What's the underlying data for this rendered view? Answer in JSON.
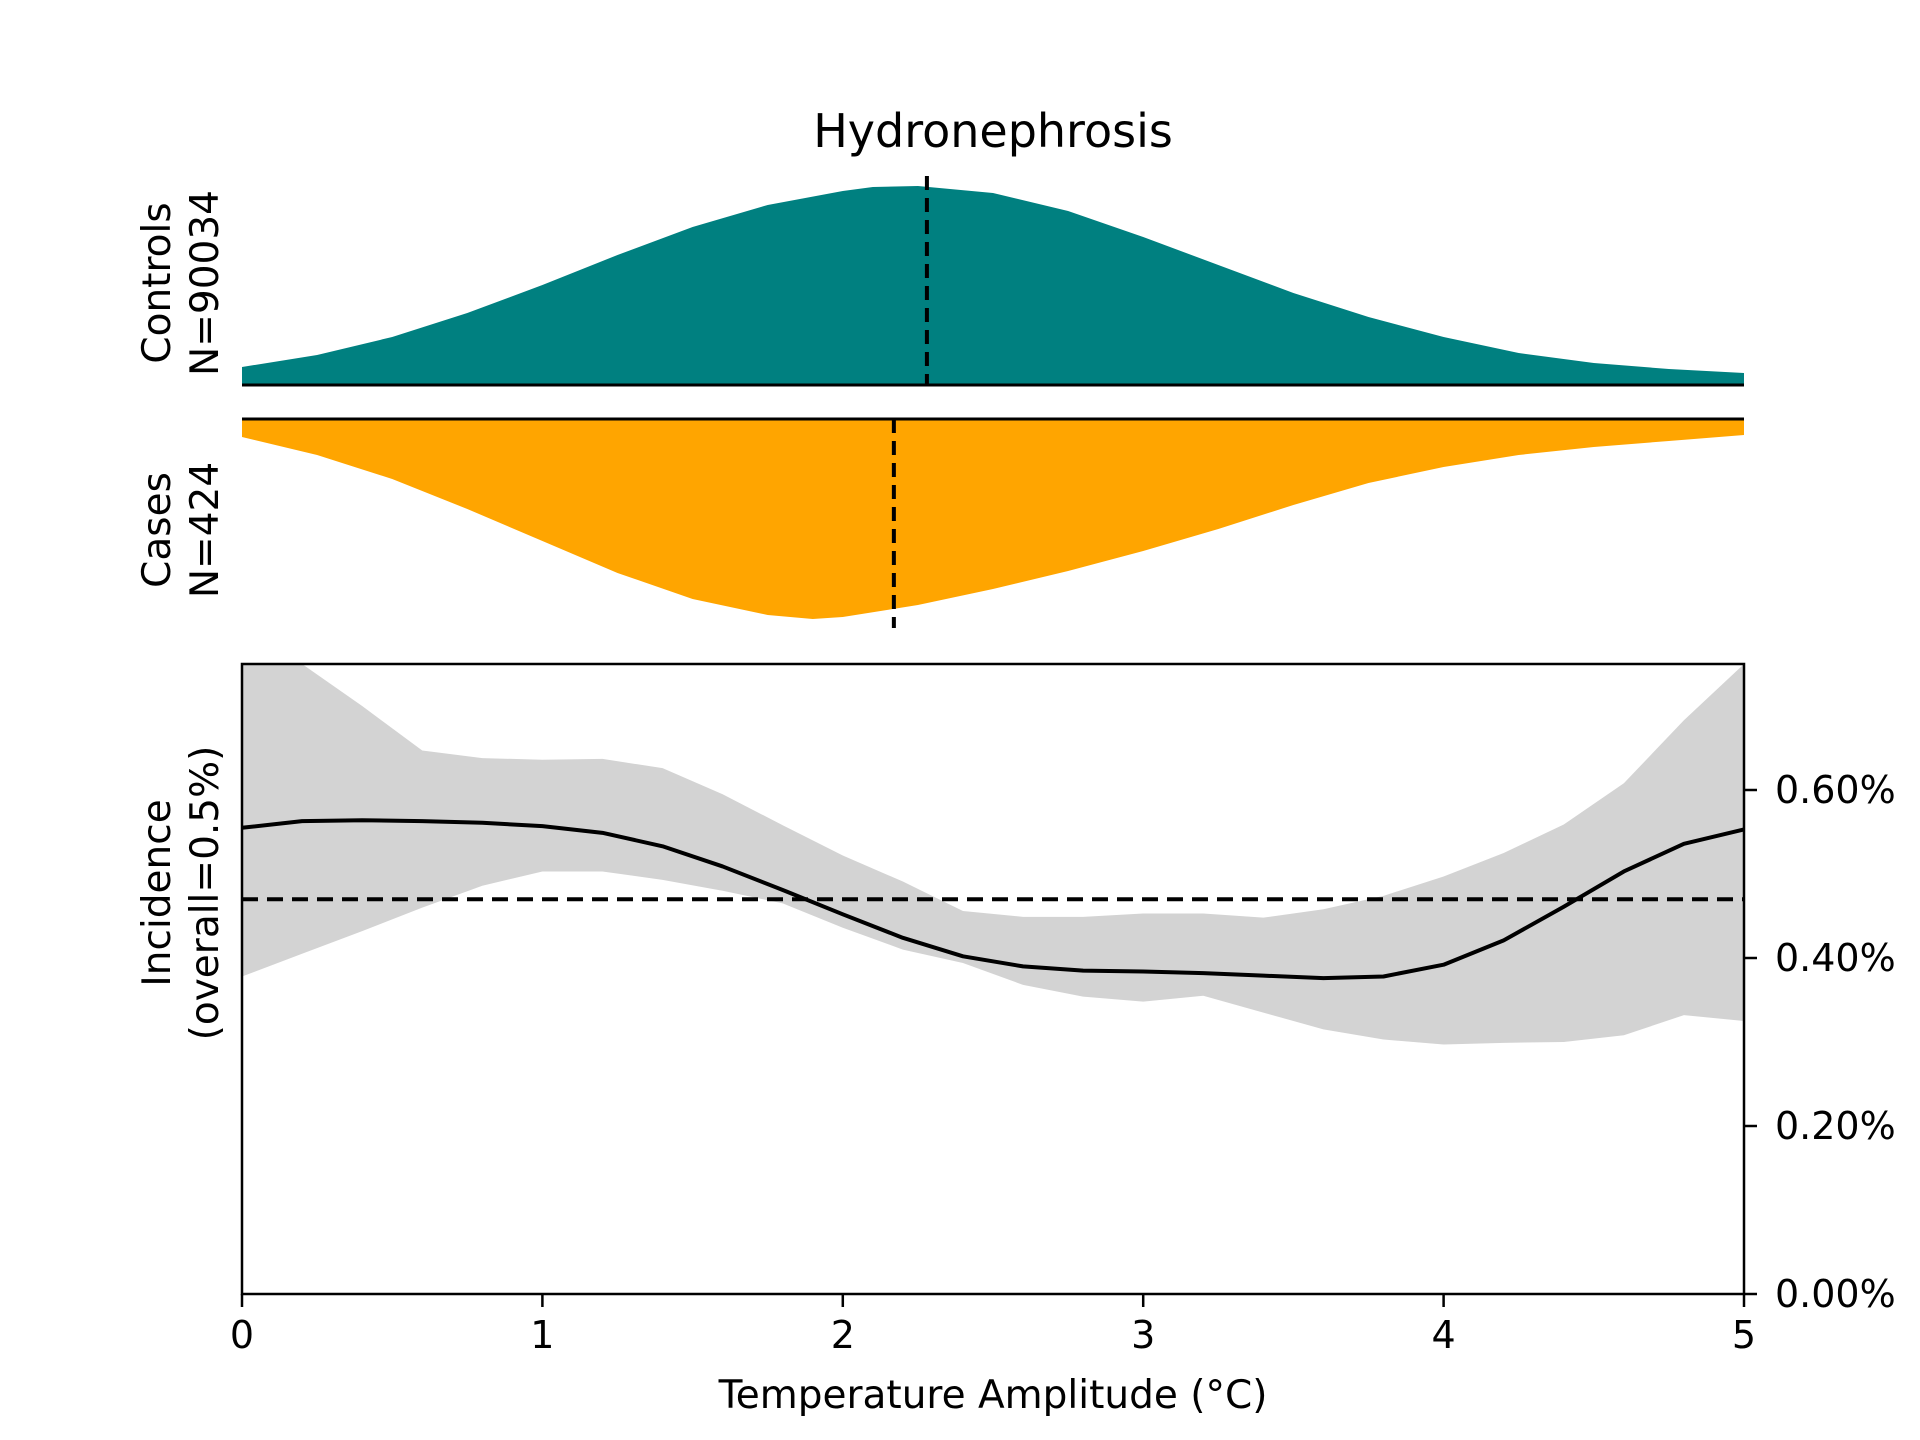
{
  "chart_data": {
    "type": "area",
    "title": "Hydronephrosis",
    "xlabel": "Temperature Amplitude (°C)",
    "xlim": [
      0,
      5
    ],
    "x_ticks": [
      0,
      1,
      2,
      3,
      4,
      5
    ],
    "x_tick_labels": [
      "0",
      "1",
      "2",
      "3",
      "4",
      "5"
    ],
    "colors": {
      "controls": "#008080",
      "cases": "#ffa500",
      "band": "#d3d3d3",
      "line": "#000000"
    },
    "controls": {
      "label_line1": "Controls",
      "label_line2": "N=90034",
      "median": 2.28,
      "density": {
        "x": [
          0,
          0.25,
          0.5,
          0.75,
          1,
          1.25,
          1.5,
          1.75,
          2,
          2.1,
          2.25,
          2.5,
          2.75,
          3,
          3.25,
          3.5,
          3.75,
          4,
          4.25,
          4.5,
          4.75,
          5
        ],
        "y": [
          0.09,
          0.15,
          0.24,
          0.36,
          0.5,
          0.65,
          0.79,
          0.9,
          0.97,
          0.99,
          0.995,
          0.96,
          0.87,
          0.74,
          0.6,
          0.46,
          0.34,
          0.24,
          0.16,
          0.11,
          0.08,
          0.06
        ]
      }
    },
    "cases": {
      "label_line1": "Cases",
      "label_line2": "N=424",
      "median": 2.17,
      "density": {
        "x": [
          0,
          0.25,
          0.5,
          0.75,
          1,
          1.25,
          1.5,
          1.75,
          1.9,
          2,
          2.25,
          2.5,
          2.75,
          3,
          3.25,
          3.5,
          3.75,
          4,
          4.25,
          4.5,
          4.75,
          5
        ],
        "y": [
          0.09,
          0.18,
          0.3,
          0.45,
          0.61,
          0.77,
          0.9,
          0.98,
          1.0,
          0.99,
          0.93,
          0.85,
          0.76,
          0.66,
          0.55,
          0.43,
          0.32,
          0.24,
          0.18,
          0.14,
          0.11,
          0.08
        ]
      }
    },
    "incidence": {
      "ylabel_line1": "Incidence",
      "ylabel_line2": "(overall=0.5%)",
      "ylim": [
        0,
        0.0075
      ],
      "y_ticks": [
        0,
        0.002,
        0.004,
        0.006
      ],
      "y_tick_labels": [
        "0.00%",
        "0.20%",
        "0.40%",
        "0.60%"
      ],
      "overall_rate": 0.0047,
      "x": [
        0,
        0.2,
        0.4,
        0.6,
        0.8,
        1.0,
        1.2,
        1.4,
        1.6,
        1.8,
        2.0,
        2.2,
        2.4,
        2.6,
        2.8,
        3.0,
        3.2,
        3.4,
        3.6,
        3.8,
        4.0,
        4.2,
        4.4,
        4.6,
        4.8,
        5.0
      ],
      "y": [
        0.00555,
        0.00563,
        0.00564,
        0.00563,
        0.00561,
        0.00557,
        0.00549,
        0.00533,
        0.00509,
        0.00481,
        0.00452,
        0.00424,
        0.00402,
        0.0039,
        0.00385,
        0.00384,
        0.00382,
        0.00379,
        0.00376,
        0.00378,
        0.00392,
        0.00421,
        0.00461,
        0.00503,
        0.00536,
        0.00553
      ],
      "lower": [
        0.00378,
        0.00405,
        0.00432,
        0.0046,
        0.00486,
        0.00503,
        0.00503,
        0.00493,
        0.0048,
        0.00465,
        0.00436,
        0.0041,
        0.00394,
        0.00368,
        0.00354,
        0.00348,
        0.00355,
        0.00335,
        0.00315,
        0.00303,
        0.00297,
        0.00299,
        0.003,
        0.00308,
        0.00332,
        0.00325
      ],
      "upper": [
        0.0075,
        0.0075,
        0.007,
        0.00647,
        0.00638,
        0.00636,
        0.00637,
        0.00626,
        0.00595,
        0.00558,
        0.00522,
        0.00491,
        0.00456,
        0.00449,
        0.00449,
        0.00453,
        0.00453,
        0.00448,
        0.00458,
        0.00474,
        0.00497,
        0.00525,
        0.00559,
        0.00608,
        0.00683,
        0.0075
      ]
    }
  }
}
